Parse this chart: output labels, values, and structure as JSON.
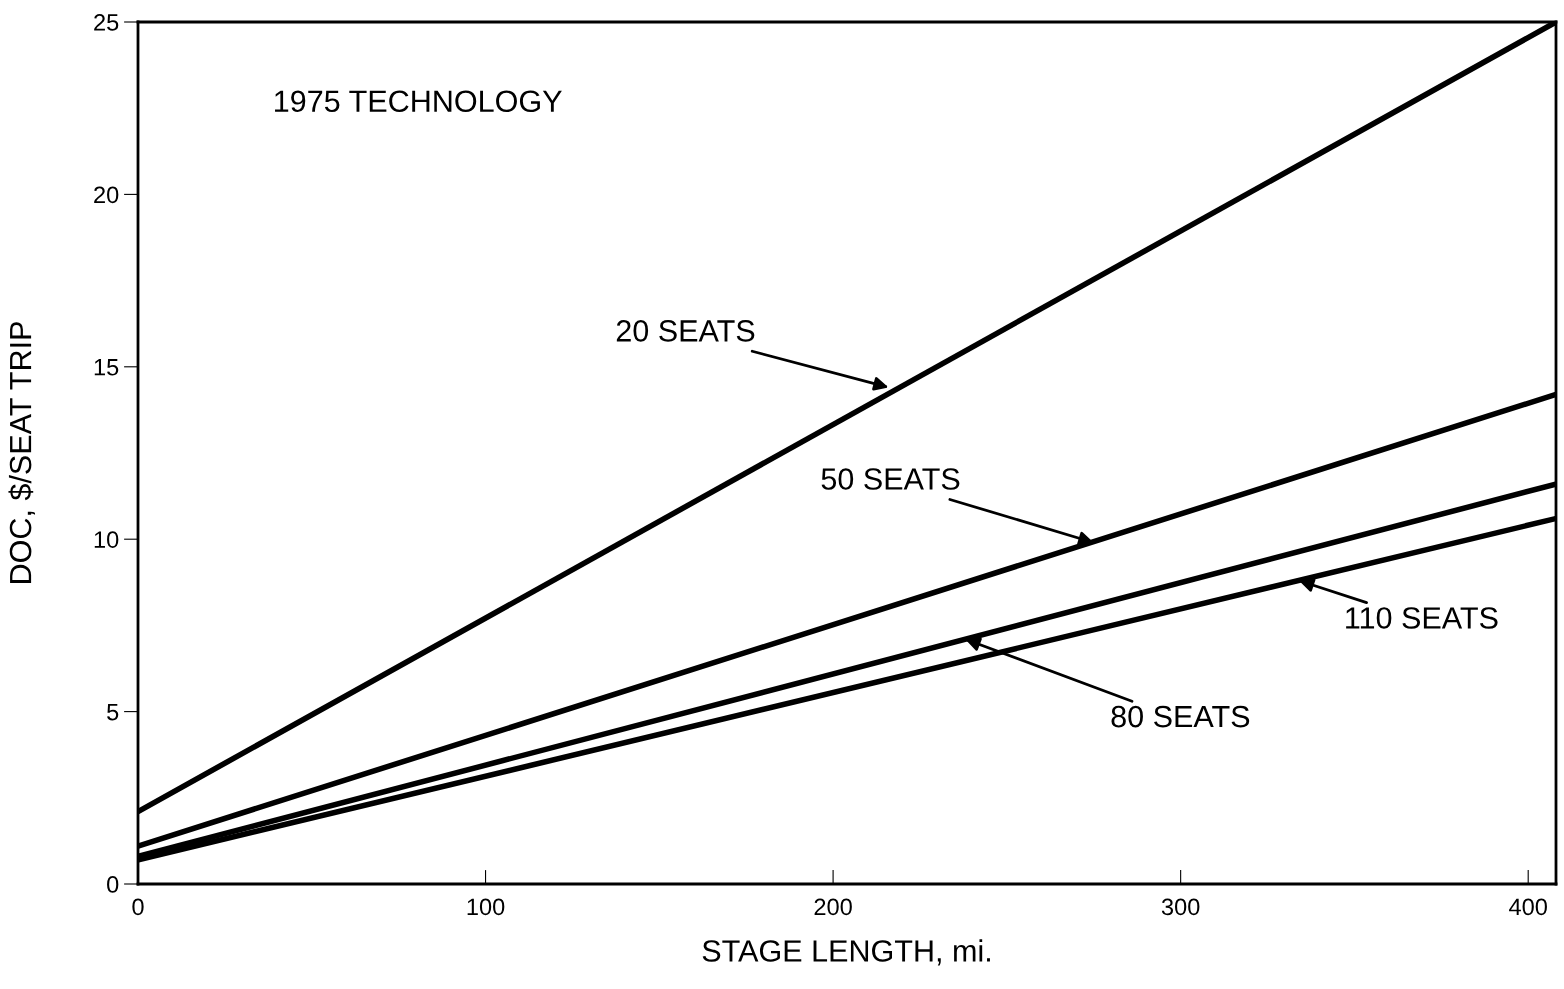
{
  "chart_data": {
    "type": "line",
    "xlabel": "STAGE LENGTH, mi.",
    "ylabel": "DOC, $/SEAT TRIP",
    "xlim": [
      0,
      408
    ],
    "ylim": [
      0,
      25
    ],
    "xticks": [
      0,
      100,
      200,
      300,
      400
    ],
    "yticks": [
      0,
      5,
      10,
      15,
      20,
      25
    ],
    "grid": false,
    "marker": "none",
    "line_style": "solid",
    "x": [
      0,
      408
    ],
    "series": [
      {
        "color": "#000000",
        "values": [
          2.1,
          25.0
        ]
      },
      {
        "color": "#000000",
        "values": [
          1.1,
          14.2
        ]
      },
      {
        "color": "#000000",
        "values": [
          0.8,
          11.6
        ]
      },
      {
        "color": "#000000",
        "values": [
          0.7,
          10.6
        ]
      }
    ],
    "annotations": [
      "1975 TECHNOLOGY",
      {
        "text": "20 SEATS",
        "x": 216,
        "y": 14.4
      },
      {
        "text": "50 SEATS",
        "x": 275,
        "y": 9.9
      },
      {
        "text": "80 SEATS",
        "x": 238,
        "y": 7.1
      },
      {
        "text": "110 SEATS",
        "x": 334,
        "y": 8.8
      }
    ]
  }
}
